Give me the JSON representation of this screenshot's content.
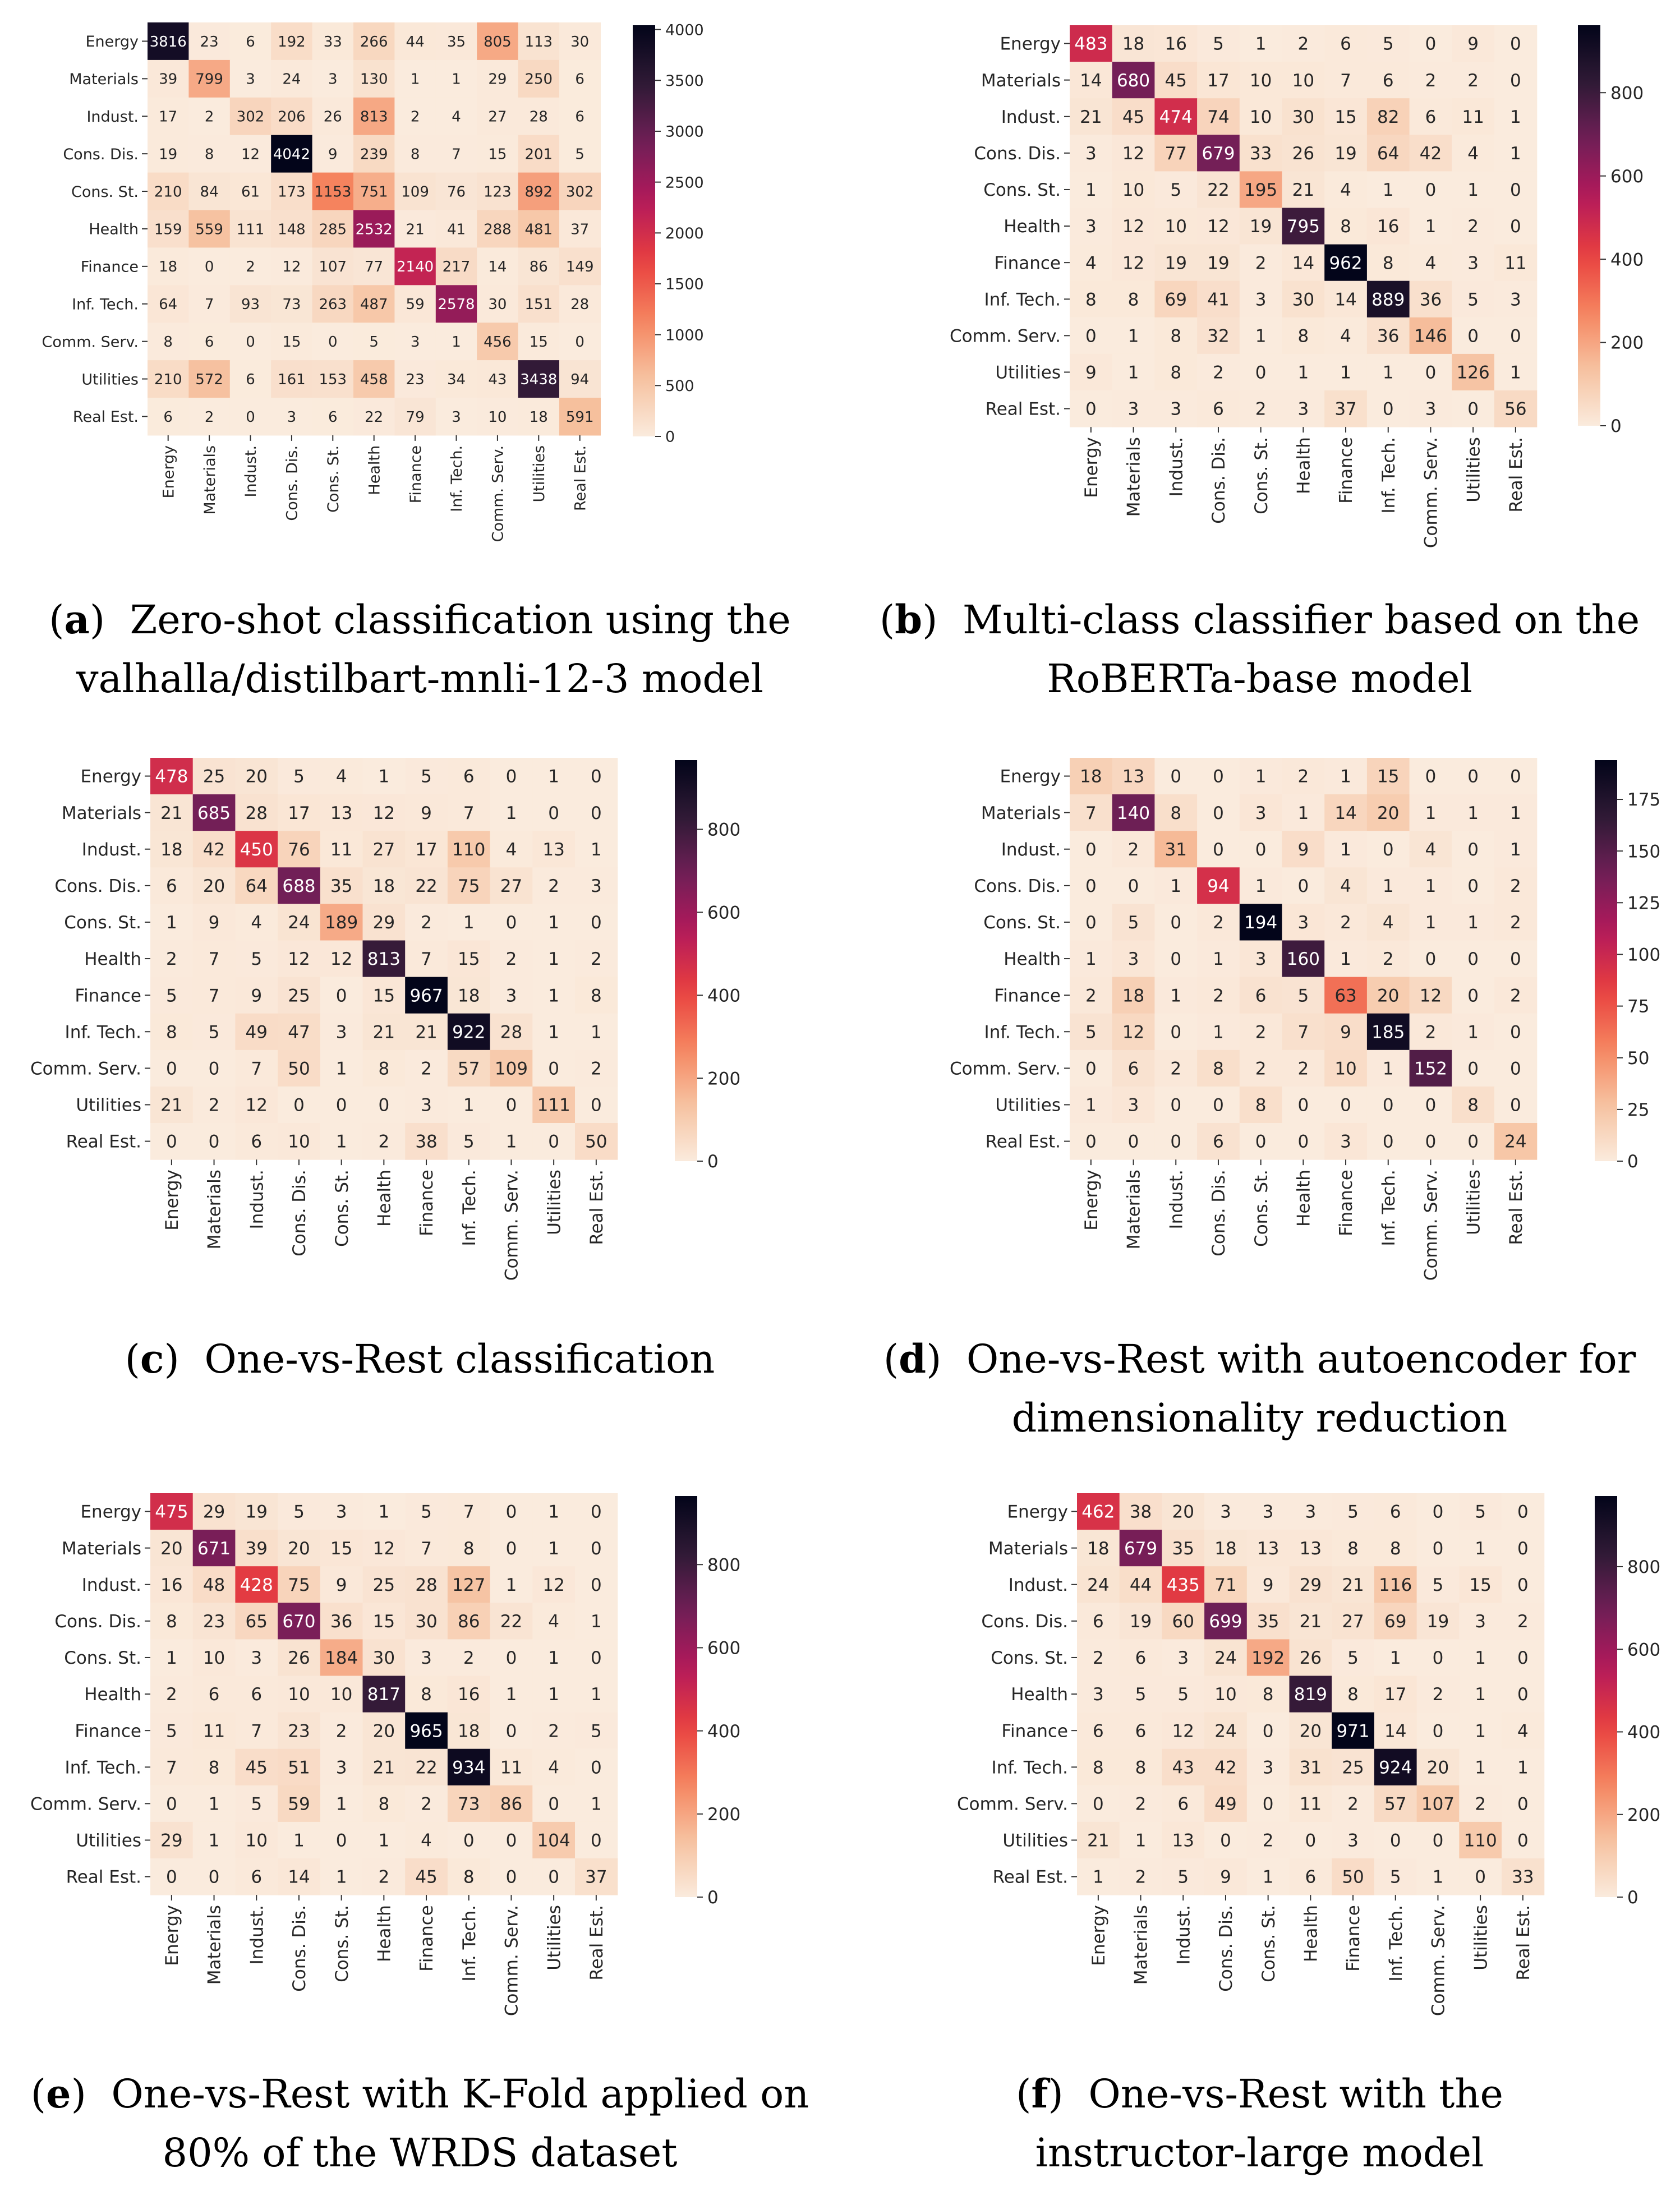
{
  "labels": [
    "Energy",
    "Materials",
    "Indust.",
    "Cons. Dis.",
    "Cons. St.",
    "Health",
    "Finance",
    "Inf. Tech.",
    "Comm. Serv.",
    "Utilities",
    "Real Est."
  ],
  "colormap": [
    "#faebdd",
    "#f6c19f",
    "#f5835e",
    "#e83f3f",
    "#b4195b",
    "#701f57",
    "#2f1a35",
    "#03051a"
  ],
  "chart_data": [
    {
      "type": "heatmap",
      "id": "a",
      "caption_letter": "a",
      "caption_lines": [
        "Zero-shot classification using the",
        "valhalla/distilbart-mnli-12-3 model"
      ],
      "vmax": 4042,
      "colorbar_ticks": [
        0,
        500,
        1000,
        1500,
        2000,
        2500,
        3000,
        3500,
        4000
      ],
      "matrix": [
        [
          3816,
          23,
          6,
          192,
          33,
          266,
          44,
          35,
          805,
          113,
          30
        ],
        [
          39,
          799,
          3,
          24,
          3,
          130,
          1,
          1,
          29,
          250,
          6
        ],
        [
          17,
          2,
          302,
          206,
          26,
          813,
          2,
          4,
          27,
          28,
          6
        ],
        [
          19,
          8,
          12,
          4042,
          9,
          239,
          8,
          7,
          15,
          201,
          5
        ],
        [
          210,
          84,
          61,
          173,
          1153,
          751,
          109,
          76,
          123,
          892,
          302
        ],
        [
          159,
          559,
          111,
          148,
          285,
          2532,
          21,
          41,
          288,
          481,
          37
        ],
        [
          18,
          0,
          2,
          12,
          107,
          77,
          2140,
          217,
          14,
          86,
          149
        ],
        [
          64,
          7,
          93,
          73,
          263,
          487,
          59,
          2578,
          30,
          151,
          28
        ],
        [
          8,
          6,
          0,
          15,
          0,
          5,
          3,
          1,
          456,
          15,
          0
        ],
        [
          210,
          572,
          6,
          161,
          153,
          458,
          23,
          34,
          43,
          3438,
          94
        ],
        [
          6,
          2,
          0,
          3,
          6,
          22,
          79,
          3,
          10,
          18,
          591
        ]
      ]
    },
    {
      "type": "heatmap",
      "id": "b",
      "caption_letter": "b",
      "caption_lines": [
        "Multi-class classifier based on the",
        "RoBERTa-base model"
      ],
      "vmax": 962,
      "colorbar_ticks": [
        0,
        200,
        400,
        600,
        800
      ],
      "matrix": [
        [
          483,
          18,
          16,
          5,
          1,
          2,
          6,
          5,
          0,
          9,
          0
        ],
        [
          14,
          680,
          45,
          17,
          10,
          10,
          7,
          6,
          2,
          2,
          0
        ],
        [
          21,
          45,
          474,
          74,
          10,
          30,
          15,
          82,
          6,
          11,
          1
        ],
        [
          3,
          12,
          77,
          679,
          33,
          26,
          19,
          64,
          42,
          4,
          1
        ],
        [
          1,
          10,
          5,
          22,
          195,
          21,
          4,
          1,
          0,
          1,
          0
        ],
        [
          3,
          12,
          10,
          12,
          19,
          795,
          8,
          16,
          1,
          2,
          0
        ],
        [
          4,
          12,
          19,
          19,
          2,
          14,
          962,
          8,
          4,
          3,
          11
        ],
        [
          8,
          8,
          69,
          41,
          3,
          30,
          14,
          889,
          36,
          5,
          3
        ],
        [
          0,
          1,
          8,
          32,
          1,
          8,
          4,
          36,
          146,
          0,
          0
        ],
        [
          9,
          1,
          8,
          2,
          0,
          1,
          1,
          1,
          0,
          126,
          1
        ],
        [
          0,
          3,
          3,
          6,
          2,
          3,
          37,
          0,
          3,
          0,
          56
        ]
      ]
    },
    {
      "type": "heatmap",
      "id": "c",
      "caption_letter": "c",
      "caption_lines": [
        "One-vs-Rest classification"
      ],
      "vmax": 967,
      "colorbar_ticks": [
        0,
        200,
        400,
        600,
        800
      ],
      "matrix": [
        [
          478,
          25,
          20,
          5,
          4,
          1,
          5,
          6,
          0,
          1,
          0
        ],
        [
          21,
          685,
          28,
          17,
          13,
          12,
          9,
          7,
          1,
          0,
          0
        ],
        [
          18,
          42,
          450,
          76,
          11,
          27,
          17,
          110,
          4,
          13,
          1
        ],
        [
          6,
          20,
          64,
          688,
          35,
          18,
          22,
          75,
          27,
          2,
          3
        ],
        [
          1,
          9,
          4,
          24,
          189,
          29,
          2,
          1,
          0,
          1,
          0
        ],
        [
          2,
          7,
          5,
          12,
          12,
          813,
          7,
          15,
          2,
          1,
          2
        ],
        [
          5,
          7,
          9,
          25,
          0,
          15,
          967,
          18,
          3,
          1,
          8
        ],
        [
          8,
          5,
          49,
          47,
          3,
          21,
          21,
          922,
          28,
          1,
          1
        ],
        [
          0,
          0,
          7,
          50,
          1,
          8,
          2,
          57,
          109,
          0,
          2
        ],
        [
          21,
          2,
          12,
          0,
          0,
          0,
          3,
          1,
          0,
          111,
          0
        ],
        [
          0,
          0,
          6,
          10,
          1,
          2,
          38,
          5,
          1,
          0,
          50
        ]
      ]
    },
    {
      "type": "heatmap",
      "id": "d",
      "caption_letter": "d",
      "caption_lines": [
        "One-vs-Rest with autoencoder for",
        "dimensionality reduction"
      ],
      "vmax": 194,
      "colorbar_ticks": [
        0,
        25,
        50,
        75,
        100,
        125,
        150,
        175
      ],
      "matrix": [
        [
          18,
          13,
          0,
          0,
          1,
          2,
          1,
          15,
          0,
          0,
          0
        ],
        [
          7,
          140,
          8,
          0,
          3,
          1,
          14,
          20,
          1,
          1,
          1
        ],
        [
          0,
          2,
          31,
          0,
          0,
          9,
          1,
          0,
          4,
          0,
          1
        ],
        [
          0,
          0,
          1,
          94,
          1,
          0,
          4,
          1,
          1,
          0,
          2
        ],
        [
          0,
          5,
          0,
          2,
          194,
          3,
          2,
          4,
          1,
          1,
          2
        ],
        [
          1,
          3,
          0,
          1,
          3,
          160,
          1,
          2,
          0,
          0,
          0
        ],
        [
          2,
          18,
          1,
          2,
          6,
          5,
          63,
          20,
          12,
          0,
          2
        ],
        [
          5,
          12,
          0,
          1,
          2,
          7,
          9,
          185,
          2,
          1,
          0
        ],
        [
          0,
          6,
          2,
          8,
          2,
          2,
          10,
          1,
          152,
          0,
          0
        ],
        [
          1,
          3,
          0,
          0,
          8,
          0,
          0,
          0,
          0,
          8,
          0
        ],
        [
          0,
          0,
          0,
          6,
          0,
          0,
          3,
          0,
          0,
          0,
          24
        ]
      ]
    },
    {
      "type": "heatmap",
      "id": "e",
      "caption_letter": "e",
      "caption_lines": [
        "One-vs-Rest with K-Fold applied on",
        "80% of the WRDS dataset"
      ],
      "vmax": 965,
      "colorbar_ticks": [
        0,
        200,
        400,
        600,
        800
      ],
      "matrix": [
        [
          475,
          29,
          19,
          5,
          3,
          1,
          5,
          7,
          0,
          1,
          0
        ],
        [
          20,
          671,
          39,
          20,
          15,
          12,
          7,
          8,
          0,
          1,
          0
        ],
        [
          16,
          48,
          428,
          75,
          9,
          25,
          28,
          127,
          1,
          12,
          0
        ],
        [
          8,
          23,
          65,
          670,
          36,
          15,
          30,
          86,
          22,
          4,
          1
        ],
        [
          1,
          10,
          3,
          26,
          184,
          30,
          3,
          2,
          0,
          1,
          0
        ],
        [
          2,
          6,
          6,
          10,
          10,
          817,
          8,
          16,
          1,
          1,
          1
        ],
        [
          5,
          11,
          7,
          23,
          2,
          20,
          965,
          18,
          0,
          2,
          5
        ],
        [
          7,
          8,
          45,
          51,
          3,
          21,
          22,
          934,
          11,
          4,
          0
        ],
        [
          0,
          1,
          5,
          59,
          1,
          8,
          2,
          73,
          86,
          0,
          1
        ],
        [
          29,
          1,
          10,
          1,
          0,
          1,
          4,
          0,
          0,
          104,
          0
        ],
        [
          0,
          0,
          6,
          14,
          1,
          2,
          45,
          8,
          0,
          0,
          37
        ]
      ]
    },
    {
      "type": "heatmap",
      "id": "f",
      "caption_letter": "f",
      "caption_lines": [
        "One-vs-Rest with the",
        "instructor-large model"
      ],
      "vmax": 971,
      "colorbar_ticks": [
        0,
        200,
        400,
        600,
        800
      ],
      "matrix": [
        [
          462,
          38,
          20,
          3,
          3,
          3,
          5,
          6,
          0,
          5,
          0
        ],
        [
          18,
          679,
          35,
          18,
          13,
          13,
          8,
          8,
          0,
          1,
          0
        ],
        [
          24,
          44,
          435,
          71,
          9,
          29,
          21,
          116,
          5,
          15,
          0
        ],
        [
          6,
          19,
          60,
          699,
          35,
          21,
          27,
          69,
          19,
          3,
          2
        ],
        [
          2,
          6,
          3,
          24,
          192,
          26,
          5,
          1,
          0,
          1,
          0
        ],
        [
          3,
          5,
          5,
          10,
          8,
          819,
          8,
          17,
          2,
          1,
          0
        ],
        [
          6,
          6,
          12,
          24,
          0,
          20,
          971,
          14,
          0,
          1,
          4
        ],
        [
          8,
          8,
          43,
          42,
          3,
          31,
          25,
          924,
          20,
          1,
          1
        ],
        [
          0,
          2,
          6,
          49,
          0,
          11,
          2,
          57,
          107,
          2,
          0
        ],
        [
          21,
          1,
          13,
          0,
          2,
          0,
          3,
          0,
          0,
          110,
          0
        ],
        [
          1,
          2,
          5,
          9,
          1,
          6,
          50,
          5,
          1,
          0,
          33
        ]
      ]
    }
  ]
}
